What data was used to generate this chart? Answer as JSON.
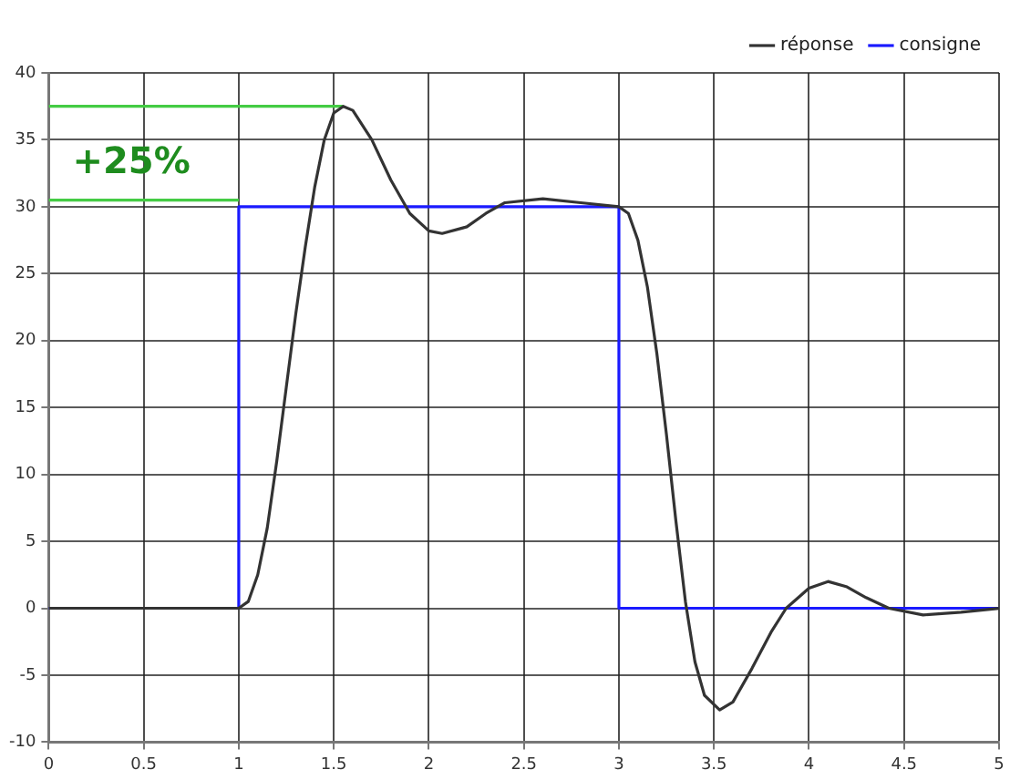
{
  "chart_data": {
    "type": "line",
    "xlim": [
      0,
      5
    ],
    "xticks": [
      0,
      0.5,
      1,
      1.5,
      2,
      2.5,
      3,
      3.5,
      4,
      4.5,
      5
    ],
    "ylim": [
      -10,
      40
    ],
    "yticks": [
      -10,
      -5,
      0,
      5,
      10,
      15,
      20,
      25,
      30,
      35,
      40
    ],
    "grid": true,
    "legend": "top right",
    "marker": "none",
    "line_style": "solid",
    "series": [
      {
        "name": "réponse",
        "color": "#333333",
        "x": [
          0,
          1,
          1.05,
          1.1,
          1.15,
          1.2,
          1.25,
          1.3,
          1.35,
          1.4,
          1.45,
          1.5,
          1.55,
          1.6,
          1.7,
          1.8,
          1.9,
          2.0,
          2.07,
          2.2,
          2.3,
          2.4,
          2.6,
          2.8,
          3.0,
          3.05,
          3.1,
          3.15,
          3.2,
          3.25,
          3.3,
          3.35,
          3.4,
          3.45,
          3.53,
          3.6,
          3.7,
          3.8,
          3.88,
          4.0,
          4.1,
          4.2,
          4.3,
          4.42,
          4.6,
          4.8,
          5
        ],
        "values": [
          0,
          0,
          0.5,
          2.5,
          6,
          11,
          16.5,
          22,
          27,
          31.5,
          35,
          37,
          37.5,
          37.2,
          35,
          32,
          29.5,
          28.2,
          28,
          28.5,
          29.5,
          30.3,
          30.6,
          30.3,
          30,
          29.5,
          27.5,
          24,
          19,
          13,
          6.5,
          0.5,
          -4,
          -6.5,
          -7.6,
          -7,
          -4.5,
          -1.8,
          0,
          1.5,
          2,
          1.6,
          0.8,
          0,
          -0.5,
          -0.3,
          0
        ]
      },
      {
        "name": "consigne",
        "color": "#1a1aff",
        "x": [
          0,
          1,
          1,
          3,
          3,
          5
        ],
        "values": [
          0,
          0,
          30,
          30,
          0,
          0
        ]
      },
      {
        "color": "#44cc44",
        "x": [
          0,
          1.55
        ],
        "values": [
          37.5,
          37.5
        ]
      },
      {
        "color": "#44cc44",
        "x": [
          0,
          1
        ],
        "values": [
          30.5,
          30.5
        ]
      }
    ],
    "annotations": [
      "+25%"
    ]
  }
}
